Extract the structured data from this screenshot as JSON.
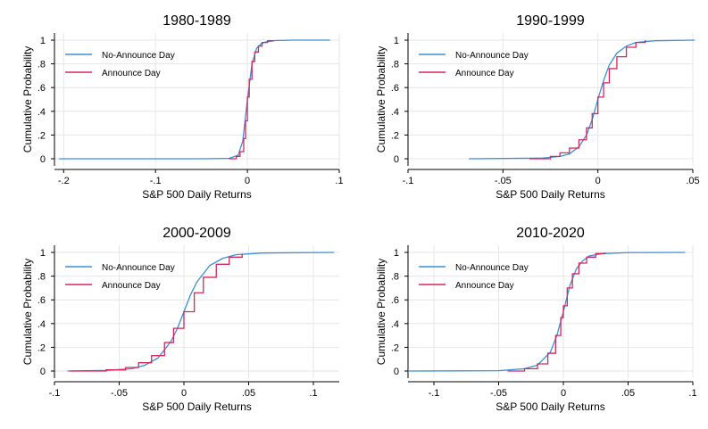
{
  "colors": {
    "no_announce": "#3a8fd9",
    "announce": "#d6275a",
    "grid": "#e6e6e6"
  },
  "chart_data": [
    {
      "type": "line",
      "title": "1980-1989",
      "xlabel": "S&P 500 Daily Returns",
      "ylabel": "Cumulative Probability",
      "xlim": [
        -0.21,
        0.1
      ],
      "ylim": [
        0,
        1
      ],
      "xticks": [
        -0.2,
        -0.1,
        0,
        0.1
      ],
      "xtick_labels": [
        "-.2",
        "-.1",
        "0",
        ".1"
      ],
      "yticks": [
        0,
        0.2,
        0.4,
        0.6,
        0.8,
        1
      ],
      "ytick_labels": [
        "0",
        ".2",
        ".4",
        ".6",
        ".8",
        "1"
      ],
      "grid": true,
      "legend_position": "top-left",
      "series": [
        {
          "name": "No-Announce Day",
          "color": "#3a8fd9",
          "x": [
            -0.205,
            -0.1,
            -0.05,
            -0.02,
            -0.01,
            -0.005,
            0,
            0.005,
            0.01,
            0.015,
            0.02,
            0.03,
            0.05,
            0.09
          ],
          "y": [
            0,
            0,
            0,
            0.003,
            0.03,
            0.15,
            0.5,
            0.8,
            0.93,
            0.97,
            0.985,
            0.996,
            1,
            1
          ]
        },
        {
          "name": "Announce Day",
          "color": "#d6275a",
          "x": [
            -0.02,
            -0.012,
            -0.008,
            -0.004,
            -0.002,
            0,
            0.002,
            0.005,
            0.008,
            0.012,
            0.016,
            0.022,
            0.028
          ],
          "y": [
            0,
            0.02,
            0.06,
            0.17,
            0.32,
            0.52,
            0.67,
            0.82,
            0.9,
            0.95,
            0.98,
            0.995,
            1
          ]
        }
      ]
    },
    {
      "type": "line",
      "title": "1990-1999",
      "xlabel": "S&P 500 Daily Returns",
      "ylabel": "Cumulative Probability",
      "xlim": [
        -0.1,
        0.05
      ],
      "ylim": [
        0,
        1
      ],
      "xticks": [
        -0.1,
        -0.05,
        0,
        0.05
      ],
      "xtick_labels": [
        "-.1",
        "-.05",
        "0",
        ".05"
      ],
      "yticks": [
        0,
        0.2,
        0.4,
        0.6,
        0.8,
        1
      ],
      "ytick_labels": [
        "0",
        ".2",
        ".4",
        ".6",
        ".8",
        "1"
      ],
      "grid": true,
      "legend_position": "top-left",
      "series": [
        {
          "name": "No-Announce Day",
          "color": "#3a8fd9",
          "x": [
            -0.068,
            -0.03,
            -0.02,
            -0.015,
            -0.01,
            -0.006,
            -0.003,
            0,
            0.003,
            0.006,
            0.01,
            0.015,
            0.02,
            0.03,
            0.051
          ],
          "y": [
            0,
            0.005,
            0.02,
            0.04,
            0.1,
            0.2,
            0.33,
            0.5,
            0.66,
            0.79,
            0.89,
            0.95,
            0.98,
            0.995,
            1
          ]
        },
        {
          "name": "Announce Day",
          "color": "#d6275a",
          "x": [
            -0.036,
            -0.025,
            -0.02,
            -0.015,
            -0.01,
            -0.006,
            -0.003,
            0,
            0.003,
            0.006,
            0.01,
            0.015,
            0.02,
            0.025
          ],
          "y": [
            0,
            0.02,
            0.05,
            0.09,
            0.16,
            0.26,
            0.38,
            0.52,
            0.64,
            0.76,
            0.86,
            0.94,
            0.98,
            1
          ]
        }
      ]
    },
    {
      "type": "line",
      "title": "2000-2009",
      "xlabel": "S&P 500 Daily Returns",
      "ylabel": "Cumulative Probability",
      "xlim": [
        -0.1,
        0.12
      ],
      "ylim": [
        0,
        1
      ],
      "xticks": [
        -0.1,
        -0.05,
        0,
        0.05,
        0.1
      ],
      "xtick_labels": [
        "-.1",
        "-.05",
        "0",
        ".05",
        ".1"
      ],
      "yticks": [
        0,
        0.2,
        0.4,
        0.6,
        0.8,
        1
      ],
      "ytick_labels": [
        "0",
        ".2",
        ".4",
        ".6",
        ".8",
        "1"
      ],
      "grid": true,
      "legend_position": "top-left",
      "series": [
        {
          "name": "No-Announce Day",
          "color": "#3a8fd9",
          "x": [
            -0.09,
            -0.06,
            -0.04,
            -0.03,
            -0.02,
            -0.01,
            -0.005,
            0,
            0.005,
            0.01,
            0.02,
            0.03,
            0.04,
            0.06,
            0.116
          ],
          "y": [
            0,
            0.005,
            0.02,
            0.05,
            0.11,
            0.25,
            0.36,
            0.5,
            0.64,
            0.75,
            0.89,
            0.95,
            0.98,
            0.995,
            1
          ]
        },
        {
          "name": "Announce Day",
          "color": "#d6275a",
          "x": [
            -0.088,
            -0.06,
            -0.045,
            -0.035,
            -0.025,
            -0.015,
            -0.008,
            0,
            0.008,
            0.015,
            0.025,
            0.035,
            0.045
          ],
          "y": [
            0,
            0.01,
            0.03,
            0.07,
            0.13,
            0.24,
            0.36,
            0.5,
            0.66,
            0.79,
            0.9,
            0.96,
            0.99
          ]
        }
      ]
    },
    {
      "type": "line",
      "title": "2010-2020",
      "xlabel": "S&P 500 Daily Returns",
      "ylabel": "Cumulative Probability",
      "xlim": [
        -0.12,
        0.1
      ],
      "ylim": [
        0,
        1
      ],
      "xticks": [
        -0.1,
        -0.05,
        0,
        0.05,
        0.1
      ],
      "xtick_labels": [
        "-.1",
        "-.05",
        "0",
        ".05",
        ".1"
      ],
      "yticks": [
        0,
        0.2,
        0.4,
        0.6,
        0.8,
        1
      ],
      "ytick_labels": [
        "0",
        ".2",
        ".4",
        ".6",
        ".8",
        "1"
      ],
      "grid": true,
      "legend_position": "top-left",
      "series": [
        {
          "name": "No-Announce Day",
          "color": "#3a8fd9",
          "x": [
            -0.12,
            -0.05,
            -0.03,
            -0.02,
            -0.01,
            -0.005,
            0,
            0.005,
            0.01,
            0.015,
            0.02,
            0.03,
            0.05,
            0.094
          ],
          "y": [
            0,
            0.003,
            0.02,
            0.05,
            0.16,
            0.3,
            0.5,
            0.72,
            0.86,
            0.93,
            0.97,
            0.99,
            0.998,
            1
          ]
        },
        {
          "name": "Announce Day",
          "color": "#d6275a",
          "x": [
            -0.043,
            -0.03,
            -0.02,
            -0.012,
            -0.006,
            -0.002,
            0,
            0.003,
            0.007,
            0.012,
            0.018,
            0.025,
            0.032
          ],
          "y": [
            0,
            0.02,
            0.06,
            0.15,
            0.3,
            0.45,
            0.55,
            0.7,
            0.82,
            0.91,
            0.96,
            0.99,
            1
          ]
        }
      ]
    }
  ]
}
